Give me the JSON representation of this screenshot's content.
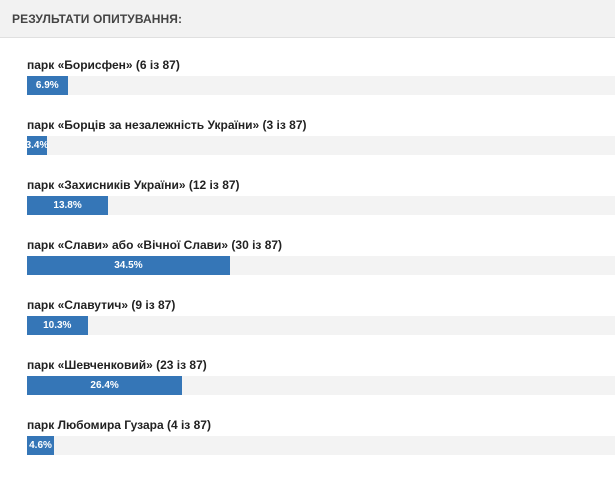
{
  "poll": {
    "title": "РЕЗУЛЬТАТИ ОПИТУВАННЯ:",
    "bar_color": "#3576b7",
    "results": [
      {
        "label": "парк «Борисфен» (6 із 87)",
        "percent_label": "6.9%",
        "percent": 6.9
      },
      {
        "label": "парк «Борців за незалежність України» (3 із 87)",
        "percent_label": "3.4%",
        "percent": 3.4
      },
      {
        "label": "парк «Захисників України» (12 із 87)",
        "percent_label": "13.8%",
        "percent": 13.8
      },
      {
        "label": "парк «Слави» або «Вічної Слави» (30 із 87)",
        "percent_label": "34.5%",
        "percent": 34.5
      },
      {
        "label": "парк «Славутич» (9 із 87)",
        "percent_label": "10.3%",
        "percent": 10.3
      },
      {
        "label": "парк «Шевченковий» (23 із 87)",
        "percent_label": "26.4%",
        "percent": 26.4
      },
      {
        "label": "парк Любомира Гузара (4 із 87)",
        "percent_label": "4.6%",
        "percent": 4.6
      }
    ]
  }
}
